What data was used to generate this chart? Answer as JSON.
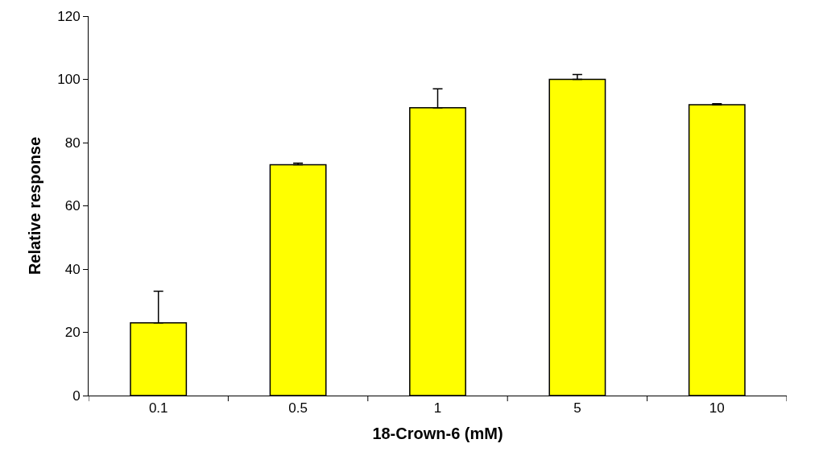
{
  "chart_data": {
    "type": "bar",
    "xlabel": "18-Crown-6 (mM)",
    "ylabel": "Relative response",
    "categories": [
      "0.1",
      "0.5",
      "1",
      "5",
      "10"
    ],
    "values": [
      23,
      73,
      91,
      100,
      92
    ],
    "errors": [
      [
        23,
        33
      ],
      [
        73,
        73.5
      ],
      [
        91,
        97
      ],
      [
        100,
        101.5
      ],
      [
        92,
        92.3
      ]
    ],
    "color": "#ffff00",
    "ylim": [
      0,
      120
    ],
    "yticks": [
      0,
      20,
      40,
      60,
      80,
      100,
      120
    ]
  }
}
